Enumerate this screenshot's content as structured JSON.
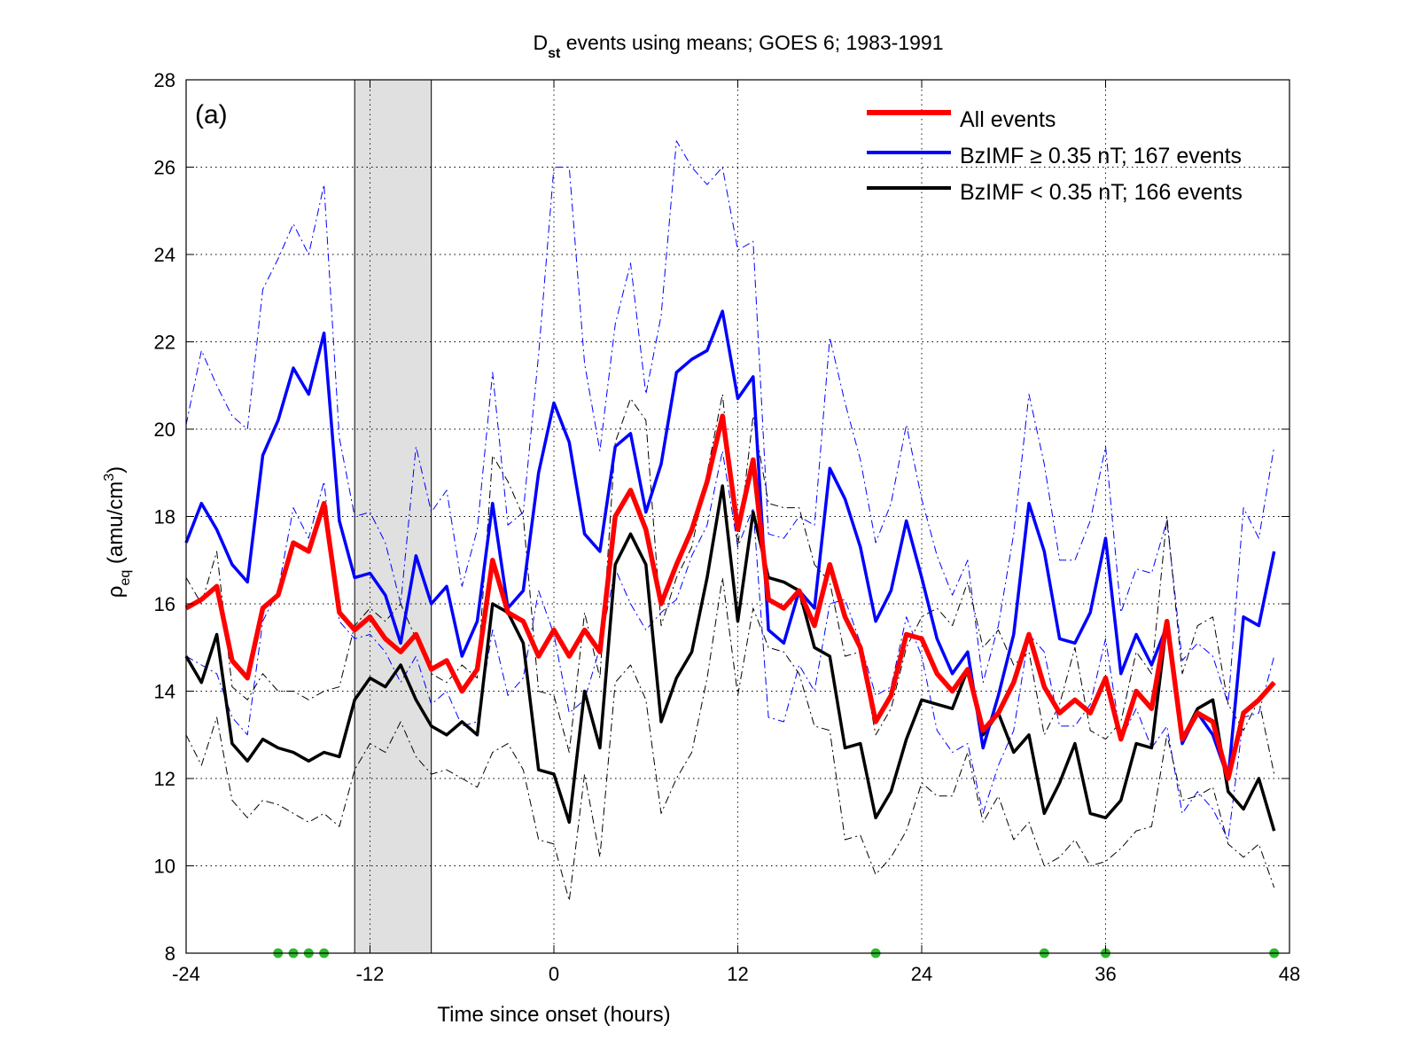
{
  "chart_data": {
    "type": "line",
    "title_main": "D",
    "title_sub": "st",
    "title_rest": " events using means; GOES 6; 1983-1991",
    "panel_label": "(a)",
    "xlabel": "Time since onset (hours)",
    "ylabel_main": "ρ",
    "ylabel_sub": "eq",
    "ylabel_rest": " (amu/cm",
    "ylabel_sup": "3",
    "ylabel_close": ")",
    "xlim": [
      -24,
      48
    ],
    "ylim": [
      8,
      28
    ],
    "xticks": [
      -24,
      -12,
      0,
      12,
      24,
      36,
      48
    ],
    "yticks": [
      8,
      10,
      12,
      14,
      16,
      18,
      20,
      22,
      24,
      26,
      28
    ],
    "grid": true,
    "legend_placement": "top-right",
    "shaded_interval": [
      -13,
      -8
    ],
    "x": [
      -24,
      -23,
      -22,
      -21,
      -20,
      -19,
      -18,
      -17,
      -16,
      -15,
      -14,
      -13,
      -12,
      -11,
      -10,
      -9,
      -8,
      -7,
      -6,
      -5,
      -4,
      -3,
      -2,
      -1,
      0,
      1,
      2,
      3,
      4,
      5,
      6,
      7,
      8,
      9,
      10,
      11,
      12,
      13,
      14,
      15,
      16,
      17,
      18,
      19,
      20,
      21,
      22,
      23,
      24,
      25,
      26,
      27,
      28,
      29,
      30,
      31,
      32,
      33,
      34,
      35,
      36,
      37,
      38,
      39,
      40,
      41,
      42,
      43,
      44,
      45,
      46,
      47
    ],
    "series": [
      {
        "name": "All events",
        "color": "#ff0000",
        "style": "solid-thick",
        "values": [
          15.9,
          16.1,
          16.4,
          14.7,
          14.3,
          15.9,
          16.2,
          17.4,
          17.2,
          18.3,
          15.8,
          15.4,
          15.7,
          15.2,
          14.9,
          15.3,
          14.5,
          14.7,
          14.0,
          14.5,
          17.0,
          15.8,
          15.6,
          14.8,
          15.4,
          14.8,
          15.4,
          14.9,
          18.0,
          18.6,
          17.7,
          16.0,
          16.9,
          17.7,
          18.8,
          20.3,
          17.7,
          19.3,
          16.1,
          15.9,
          16.3,
          15.5,
          16.9,
          15.7,
          15.0,
          13.3,
          13.9,
          15.3,
          15.2,
          14.4,
          14.0,
          14.5,
          13.1,
          13.5,
          14.2,
          15.3,
          14.1,
          13.5,
          13.8,
          13.5,
          14.3,
          12.9,
          14.0,
          13.6,
          15.6,
          12.9,
          13.5,
          13.3,
          12.0,
          13.5,
          13.8,
          14.2
        ]
      },
      {
        "name": "BzIMF ≥ 0.35 nT; 167 events",
        "color": "#0000ff",
        "style": "solid",
        "values": [
          17.4,
          18.3,
          17.7,
          16.9,
          16.5,
          19.4,
          20.2,
          21.4,
          20.8,
          22.2,
          17.9,
          16.6,
          16.7,
          16.2,
          15.1,
          17.1,
          16.0,
          16.4,
          14.8,
          15.6,
          18.3,
          15.9,
          16.3,
          19.0,
          20.6,
          19.7,
          17.6,
          17.2,
          19.6,
          19.9,
          18.1,
          19.2,
          21.3,
          21.6,
          21.8,
          22.7,
          20.7,
          21.2,
          15.4,
          15.1,
          16.3,
          15.9,
          19.1,
          18.4,
          17.3,
          15.6,
          16.3,
          17.9,
          16.6,
          15.2,
          14.4,
          14.9,
          12.7,
          13.9,
          15.3,
          18.3,
          17.2,
          15.2,
          15.1,
          15.8,
          17.5,
          14.4,
          15.3,
          14.6,
          15.5,
          12.8,
          13.5,
          13.0,
          12.0,
          15.7,
          15.5,
          17.2
        ]
      },
      {
        "name": "BzIMF < 0.35 nT; 166 events",
        "color": "#000000",
        "style": "solid",
        "values": [
          14.8,
          14.2,
          15.3,
          12.8,
          12.4,
          12.9,
          12.7,
          12.6,
          12.4,
          12.6,
          12.5,
          13.8,
          14.3,
          14.1,
          14.6,
          13.8,
          13.2,
          13.0,
          13.3,
          13.0,
          16.0,
          15.8,
          15.1,
          12.2,
          12.1,
          11.0,
          14.0,
          12.7,
          16.9,
          17.6,
          16.9,
          13.3,
          14.3,
          14.9,
          16.6,
          18.7,
          15.6,
          18.1,
          16.6,
          16.5,
          16.3,
          15.0,
          14.8,
          12.7,
          12.8,
          11.1,
          11.7,
          12.9,
          13.8,
          13.7,
          13.6,
          14.5,
          13.0,
          13.5,
          12.6,
          13.0,
          11.2,
          11.9,
          12.8,
          11.2,
          11.1,
          11.5,
          12.8,
          12.7,
          15.6,
          12.9,
          13.6,
          13.8,
          11.7,
          11.3,
          12.0,
          10.8
        ]
      },
      {
        "name": "",
        "color": "#0000ff",
        "style": "dashdot-thin",
        "values": [
          20.1,
          21.8,
          21.0,
          20.3,
          20.0,
          23.2,
          23.9,
          24.7,
          24.0,
          25.6,
          19.8,
          18.0,
          18.1,
          17.4,
          16.0,
          19.6,
          18.1,
          18.6,
          16.4,
          17.7,
          21.3,
          17.8,
          18.1,
          21.7,
          26.0,
          26.0,
          21.5,
          19.5,
          22.4,
          23.8,
          20.8,
          22.6,
          26.6,
          26.0,
          25.6,
          26.0,
          24.1,
          24.3,
          17.6,
          17.5,
          18.0,
          17.8,
          22.1,
          20.6,
          19.3,
          17.4,
          18.3,
          20.1,
          18.4,
          17.1,
          16.2,
          17.0,
          14.2,
          15.5,
          17.6,
          20.8,
          19.2,
          17.0,
          17.0,
          17.9,
          19.6,
          15.8,
          16.8,
          16.7,
          17.9,
          14.7,
          15.1,
          14.8,
          13.7,
          18.2,
          17.5,
          19.6
        ]
      },
      {
        "name": "",
        "color": "#0000ff",
        "style": "dashdot-thin",
        "values": [
          14.8,
          14.6,
          14.4,
          13.4,
          13.0,
          15.6,
          16.3,
          18.2,
          17.5,
          18.8,
          15.6,
          15.2,
          15.3,
          14.9,
          14.2,
          14.8,
          13.7,
          14.0,
          13.2,
          13.3,
          15.4,
          13.9,
          14.3,
          16.3,
          15.3,
          13.5,
          13.8,
          15.0,
          16.8,
          16.0,
          15.4,
          15.8,
          16.1,
          17.1,
          17.8,
          19.5,
          17.3,
          18.2,
          13.4,
          13.3,
          14.6,
          14.0,
          16.0,
          16.1,
          15.1,
          13.9,
          14.1,
          15.7,
          14.8,
          13.1,
          12.6,
          12.8,
          11.2,
          12.3,
          13.1,
          15.3,
          14.9,
          13.2,
          13.2,
          13.7,
          15.2,
          12.9,
          13.6,
          12.7,
          13.2,
          11.2,
          11.7,
          11.3,
          10.6,
          13.4,
          13.5,
          14.8
        ]
      },
      {
        "name": "",
        "color": "#000000",
        "style": "dashdot-thin",
        "values": [
          16.6,
          16.0,
          17.2,
          14.1,
          13.8,
          14.4,
          14.0,
          14.0,
          13.8,
          14.0,
          14.1,
          15.5,
          15.9,
          15.6,
          16.0,
          15.2,
          14.4,
          14.2,
          14.6,
          14.3,
          19.4,
          18.8,
          18.0,
          14.0,
          13.9,
          12.6,
          15.8,
          14.3,
          19.7,
          20.7,
          20.2,
          15.5,
          16.6,
          17.3,
          19.0,
          20.8,
          17.3,
          20.3,
          18.3,
          18.2,
          18.2,
          16.9,
          16.5,
          14.8,
          14.9,
          13.0,
          13.6,
          15.0,
          15.7,
          15.9,
          15.5,
          16.5,
          15.0,
          15.4,
          14.6,
          14.9,
          13.0,
          13.7,
          15.0,
          13.1,
          12.9,
          13.3,
          14.9,
          14.4,
          18.0,
          14.4,
          15.5,
          15.7,
          13.7,
          13.1,
          13.8,
          12.1
        ]
      },
      {
        "name": "",
        "color": "#000000",
        "style": "dashdot-thin",
        "values": [
          13.0,
          12.3,
          13.4,
          11.5,
          11.1,
          11.5,
          11.4,
          11.2,
          11.0,
          11.2,
          10.9,
          12.2,
          12.8,
          12.6,
          13.3,
          12.5,
          12.1,
          12.2,
          12.0,
          11.8,
          12.6,
          12.8,
          12.2,
          10.6,
          10.5,
          9.2,
          12.1,
          10.2,
          14.2,
          14.6,
          13.8,
          11.2,
          12.0,
          12.6,
          14.3,
          16.6,
          13.9,
          15.9,
          15.0,
          14.9,
          14.4,
          13.2,
          13.1,
          10.6,
          10.7,
          9.8,
          10.2,
          10.8,
          11.9,
          11.6,
          11.6,
          12.6,
          11.0,
          11.6,
          10.6,
          11.0,
          10.0,
          10.2,
          10.6,
          10.0,
          10.1,
          10.4,
          10.8,
          10.9,
          13.0,
          11.5,
          11.6,
          11.8,
          10.5,
          10.2,
          10.5,
          9.5
        ]
      }
    ],
    "markers": {
      "color": "#2eb82e",
      "x": [
        -18,
        -17,
        -16,
        -15,
        21,
        32,
        36,
        47
      ],
      "y": 8
    }
  }
}
